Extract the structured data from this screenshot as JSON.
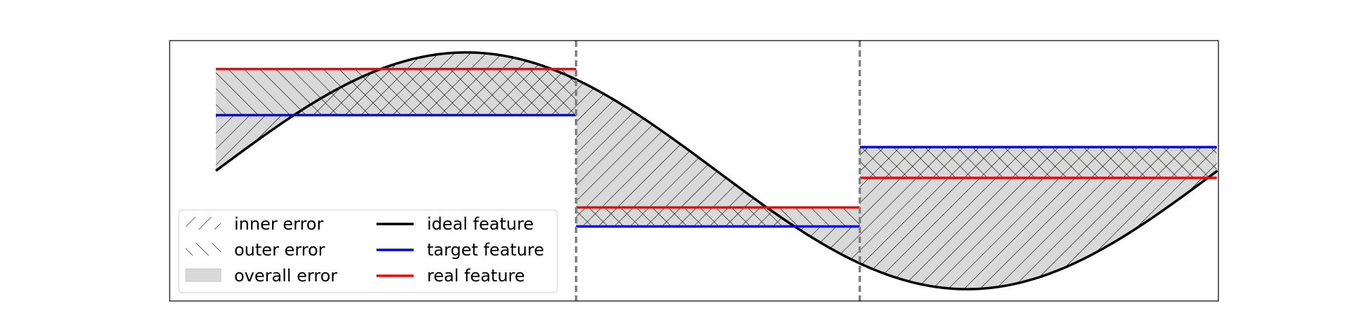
{
  "chart_data": {
    "type": "line",
    "title": "",
    "xlabel": "",
    "ylabel": "",
    "xlim": [
      -0.29,
      6.29
    ],
    "ylim": [
      -1.1,
      1.1
    ],
    "grid": false,
    "axis_ticks": false,
    "series": [
      {
        "name": "ideal feature",
        "kind": "line",
        "color": "#000000",
        "x": [
          0.0,
          0.2618,
          0.5236,
          0.7854,
          1.0472,
          1.309,
          1.5708,
          1.8326,
          2.0944,
          2.3562,
          2.618,
          2.8798,
          3.1416,
          3.4034,
          3.6652,
          3.927,
          4.1888,
          4.4506,
          4.7124,
          4.9742,
          5.236,
          5.4978,
          5.7596,
          6.0214,
          6.2832
        ],
        "y": [
          0.0,
          0.2588,
          0.5,
          0.7071,
          0.866,
          0.9659,
          1.0,
          0.9659,
          0.866,
          0.7071,
          0.5,
          0.2588,
          0.0,
          -0.2588,
          -0.5,
          -0.7071,
          -0.866,
          -0.9659,
          -1.0,
          -0.9659,
          -0.866,
          -0.7071,
          -0.5,
          -0.2588,
          0.0
        ]
      },
      {
        "name": "target feature",
        "kind": "step",
        "color": "#0000ff",
        "segments": [
          {
            "x0": 0.0,
            "x1": 2.26,
            "y": 0.47
          },
          {
            "x0": 2.26,
            "x1": 4.04,
            "y": -0.47
          },
          {
            "x0": 4.04,
            "x1": 6.28,
            "y": 0.2
          }
        ]
      },
      {
        "name": "real feature",
        "kind": "step",
        "color": "#ff0000",
        "segments": [
          {
            "x0": 0.0,
            "x1": 2.26,
            "y": 0.86
          },
          {
            "x0": 2.26,
            "x1": 4.04,
            "y": -0.31
          },
          {
            "x0": 4.04,
            "x1": 6.28,
            "y": -0.06
          }
        ]
      }
    ],
    "segment_boundaries": [
      2.26,
      4.04
    ],
    "boundary_color": "#808080",
    "boundary_style": "dashed",
    "error_fill_color": "#d9d9d9",
    "legend": {
      "location": "lower-left",
      "columns": 2,
      "entries": [
        {
          "label": "inner error",
          "swatch": "hatch-diagonal"
        },
        {
          "label": "ideal feature",
          "swatch": "line",
          "color": "#000000"
        },
        {
          "label": "outer error",
          "swatch": "hatch-cross"
        },
        {
          "label": "target feature",
          "swatch": "line",
          "color": "#0000ff"
        },
        {
          "label": "overall error",
          "swatch": "patch",
          "color": "#d9d9d9"
        },
        {
          "label": "real feature",
          "swatch": "line",
          "color": "#ff0000"
        }
      ]
    }
  }
}
